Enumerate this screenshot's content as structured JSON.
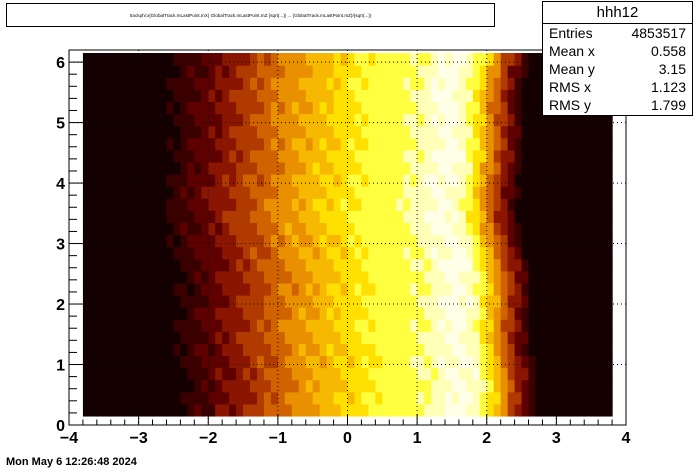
{
  "title": "trackphi:x{GlobalTrack.mLastPoint.mX} Global Track.mLastPoint.mZ ... (hdr)",
  "title_text": "trackphi:x{GlobalTrack.mLastPoint.mX} GlobalTrack.mLastPoint.mZ {sqrt(...)} ... {GlobalTrack.mLastPoint.mZ}/(sqrt(...))",
  "stats": {
    "name": "hhh12",
    "rows": [
      {
        "label": "Entries",
        "value": "4853517"
      },
      {
        "label": "Mean x",
        "value": "0.558"
      },
      {
        "label": "Mean y",
        "value": "3.15"
      },
      {
        "label": "RMS x",
        "value": "1.123"
      },
      {
        "label": "RMS y",
        "value": "1.799"
      }
    ]
  },
  "datestamp": "Mon May  6 12:26:48 2024",
  "chart_data": {
    "type": "heatmap",
    "xlim": [
      -4,
      4
    ],
    "ylim": [
      0,
      6.2
    ],
    "x_data_range": [
      -3.8,
      3.8
    ],
    "y_data_range": [
      0.15,
      6.15
    ],
    "x_ticks": [
      "−4",
      "−3",
      "−2",
      "−1",
      "0",
      "1",
      "2",
      "3",
      "4"
    ],
    "x_tick_values": [
      -4,
      -3,
      -2,
      -1,
      0,
      1,
      2,
      3,
      4
    ],
    "y_ticks": [
      "0",
      "1",
      "2",
      "3",
      "4",
      "5",
      "6"
    ],
    "y_tick_values": [
      0,
      1,
      2,
      3,
      4,
      5,
      6
    ],
    "grid": true,
    "colormap": [
      "#140000",
      "#3a0000",
      "#5e0000",
      "#8a1500",
      "#b03a00",
      "#d06200",
      "#e89000",
      "#f6b800",
      "#ffe000",
      "#ffff40",
      "#ffffb8",
      "#ffffe8"
    ],
    "profile_x": [
      -3.8,
      -2.6,
      -2.3,
      -2.0,
      -1.7,
      -1.4,
      -1.1,
      -0.8,
      -0.4,
      0.0,
      0.4,
      0.8,
      1.2,
      1.5,
      1.75,
      1.95,
      2.1,
      2.35,
      2.6,
      3.8
    ],
    "profile_level": [
      0,
      0,
      1,
      2,
      3,
      4,
      5,
      6,
      7,
      8,
      9,
      9,
      10,
      11,
      10,
      8,
      6,
      3,
      0,
      0
    ]
  }
}
